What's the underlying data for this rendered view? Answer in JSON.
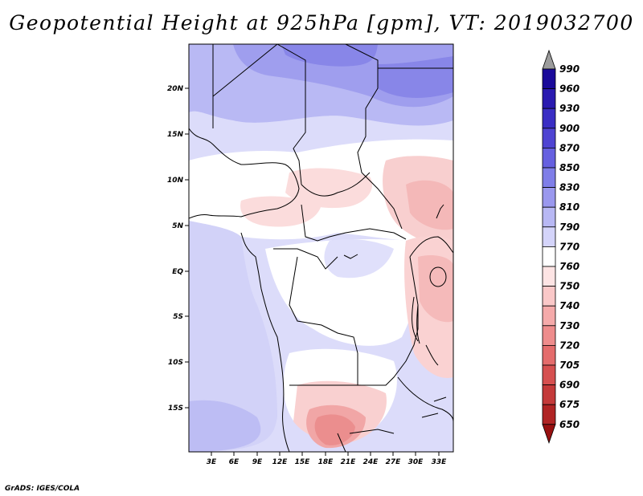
{
  "title": "Geopotential Height at 925hPa [gpm], VT: 2019032700",
  "credit": "GrADS: IGES/COLA",
  "y_ticks": [
    "20N",
    "15N",
    "10N",
    "5N",
    "EQ",
    "5S",
    "10S",
    "15S"
  ],
  "x_ticks": [
    "3E",
    "6E",
    "9E",
    "12E",
    "15E",
    "18E",
    "21E",
    "24E",
    "27E",
    "30E",
    "33E"
  ],
  "legend": {
    "levels": [
      "990",
      "960",
      "930",
      "900",
      "870",
      "850",
      "830",
      "810",
      "790",
      "770",
      "760",
      "750",
      "740",
      "730",
      "720",
      "705",
      "690",
      "675",
      "650"
    ],
    "colors": [
      "#1a0a9a",
      "#2a1ab0",
      "#3a2ec4",
      "#4f44d2",
      "#6660e0",
      "#7f7ee8",
      "#9a98ee",
      "#b8b8f4",
      "#d4d4fa",
      "#ffffff",
      "#fde4e4",
      "#fac8c8",
      "#f5aaaa",
      "#ee8c8c",
      "#e46c6c",
      "#d65050",
      "#c43a3a",
      "#b02424",
      "#981010"
    ],
    "top_arrow_color": "#9c9c9c"
  }
}
